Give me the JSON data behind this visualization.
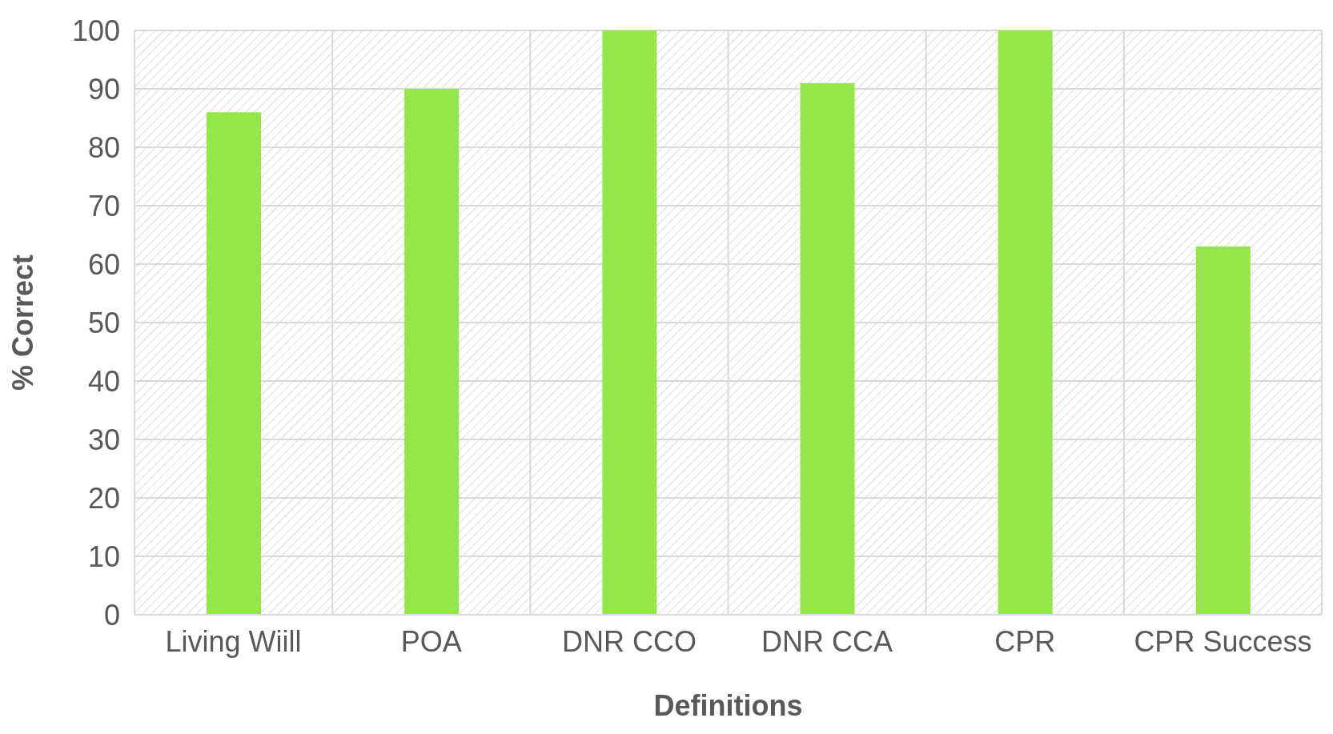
{
  "chart_data": {
    "type": "bar",
    "xlabel": "Definitions",
    "ylabel": "% Correct",
    "categories": [
      "Living Wiill",
      "POA",
      "DNR CCO",
      "DNR CCA",
      "CPR",
      "CPR Success"
    ],
    "values": [
      86,
      90,
      100,
      91,
      100,
      63
    ],
    "color": "#95e648",
    "ylim": [
      0,
      100
    ],
    "yticks": [
      0,
      10,
      20,
      30,
      40,
      50,
      60,
      70,
      80,
      90,
      100
    ],
    "grid": true
  }
}
